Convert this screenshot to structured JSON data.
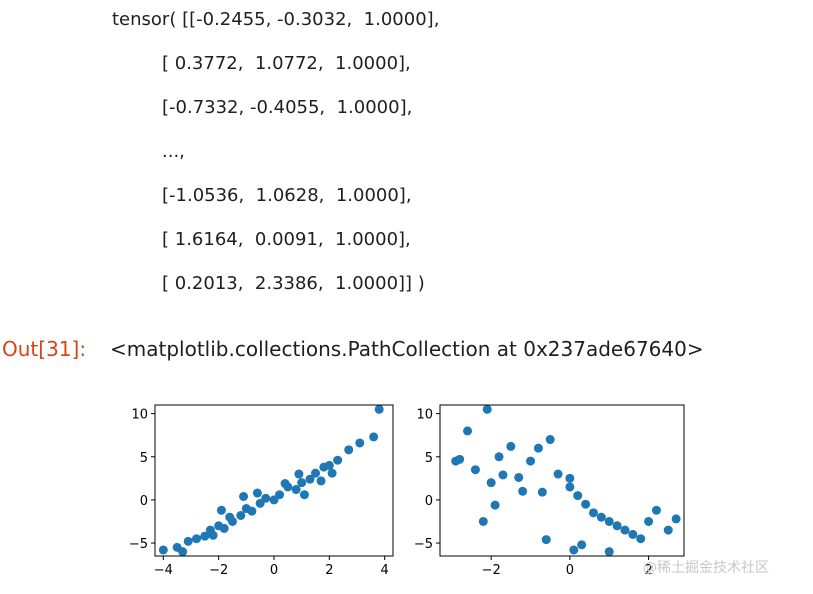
{
  "tensor_lines": [
    "tensor( [[-0.2455, -0.3032,  1.0000],",
    "[ 0.3772,  1.0772,  1.0000],",
    "[-0.7332, -0.4055,  1.0000],",
    "...,",
    "[-1.0536,  1.0628,  1.0000],",
    "[ 1.6164,  0.0091,  1.0000],",
    "[ 0.2013,  2.3386,  1.0000]] )"
  ],
  "out_prompt": "Out[31]:",
  "out_text": "<matplotlib.collections.PathCollection at 0x237ade67640>",
  "watermark": "@稀土掘金技术社区",
  "colors": {
    "marker": "#1f77b4",
    "prompt": "#d84315"
  },
  "chart_data": [
    {
      "type": "scatter",
      "title": "",
      "xlabel": "",
      "ylabel": "",
      "xlim": [
        -4.3,
        4.3
      ],
      "ylim": [
        -6.5,
        11
      ],
      "xticks": [
        -4,
        -2,
        0,
        2,
        4
      ],
      "yticks": [
        -5,
        0,
        5,
        10
      ],
      "grid": false,
      "series": [
        {
          "x": [
            -4.0,
            -3.5,
            -3.3,
            -2.8,
            -2.5,
            -2.3,
            -2.0,
            -1.8,
            -1.6,
            -1.5,
            -1.2,
            -1.0,
            -0.8,
            -0.5,
            -0.3,
            0.0,
            0.2,
            0.5,
            0.8,
            1.0,
            1.3,
            1.5,
            1.8,
            2.0,
            2.3,
            2.7,
            3.1,
            3.6,
            3.8,
            -1.9,
            -1.1,
            -0.6,
            0.4,
            1.1,
            1.7,
            2.1,
            -3.1,
            -2.2,
            0.9
          ],
          "y": [
            -5.8,
            -5.5,
            -6.0,
            -4.5,
            -4.2,
            -3.5,
            -3.0,
            -3.3,
            -2.0,
            -2.5,
            -1.8,
            -1.0,
            -1.3,
            -0.4,
            0.2,
            0.0,
            0.6,
            1.5,
            1.2,
            2.0,
            2.4,
            3.1,
            3.8,
            4.0,
            4.6,
            5.8,
            6.6,
            7.3,
            10.5,
            -1.2,
            0.4,
            0.8,
            1.9,
            0.6,
            2.2,
            3.1,
            -4.8,
            -4.1,
            3.0
          ]
        }
      ]
    },
    {
      "type": "scatter",
      "title": "",
      "xlabel": "",
      "ylabel": "",
      "xlim": [
        -3.3,
        2.9
      ],
      "ylim": [
        -6.5,
        11
      ],
      "xticks": [
        -2,
        0,
        2
      ],
      "yticks": [
        -5,
        0,
        5,
        10
      ],
      "grid": false,
      "series": [
        {
          "x": [
            -2.9,
            -2.6,
            -2.4,
            -2.1,
            -2.0,
            -1.8,
            -1.5,
            -1.3,
            -1.0,
            -0.8,
            -0.5,
            -0.3,
            0.0,
            0.2,
            0.4,
            0.6,
            0.8,
            1.0,
            1.2,
            1.4,
            1.6,
            1.8,
            2.0,
            2.2,
            2.5,
            2.7,
            -2.8,
            -2.2,
            -0.6,
            0.3,
            1.0,
            -1.9,
            -1.2,
            0.0,
            0.1,
            -1.7,
            -0.7
          ],
          "y": [
            4.5,
            8.0,
            3.5,
            10.5,
            2.0,
            5.0,
            6.2,
            2.6,
            4.5,
            6.0,
            7.0,
            3.0,
            1.5,
            0.5,
            -0.5,
            -1.5,
            -2.0,
            -2.5,
            -3.0,
            -3.5,
            -4.0,
            -4.5,
            -2.5,
            -1.2,
            -3.5,
            -2.2,
            4.7,
            -2.5,
            -4.6,
            -5.2,
            -6.0,
            -0.6,
            1.0,
            2.5,
            -5.8,
            2.9,
            0.9
          ]
        }
      ]
    }
  ]
}
